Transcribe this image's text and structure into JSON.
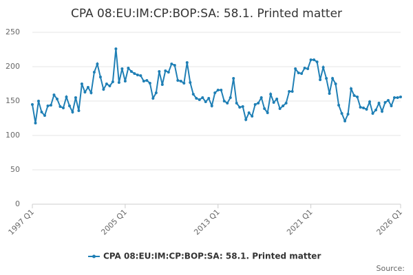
{
  "chart_data": {
    "type": "line",
    "title": "CPA 08:EU:IM:CP:BOP:SA: 58.1. Printed matter",
    "categories": [
      "1997 Q1",
      null,
      null,
      null,
      null,
      null,
      null,
      null,
      null,
      null,
      null,
      null,
      null,
      null,
      null,
      null,
      null,
      null,
      null,
      null,
      null,
      null,
      null,
      null,
      null,
      null,
      null,
      null,
      null,
      null,
      "2005 Q1",
      null,
      null,
      null,
      null,
      null,
      null,
      null,
      null,
      null,
      null,
      null,
      null,
      null,
      null,
      null,
      null,
      null,
      null,
      null,
      null,
      null,
      null,
      null,
      null,
      null,
      null,
      null,
      null,
      null,
      "2013 Q1",
      null,
      null,
      null,
      null,
      null,
      null,
      null,
      null,
      null,
      null,
      null,
      null,
      null,
      null,
      null,
      null,
      null,
      null,
      null,
      null,
      null,
      null,
      null,
      null,
      null,
      null,
      null,
      null,
      null,
      "2021 Q1",
      null,
      null,
      null,
      null,
      null,
      null,
      null,
      null,
      null,
      null,
      null,
      null,
      null,
      null,
      null,
      null,
      null,
      null,
      null,
      null,
      null,
      null,
      null,
      null,
      null,
      null,
      null,
      null,
      "2026 Q1"
    ],
    "series": [
      {
        "name": "CPA 08:EU:IM:CP:BOP:SA: 58.1. Printed matter",
        "color": "#1f7fb5",
        "values": [
          145,
          118,
          150,
          134,
          129,
          143,
          144,
          159,
          153,
          142,
          140,
          156,
          143,
          134,
          155,
          136,
          175,
          163,
          170,
          162,
          192,
          204,
          185,
          167,
          175,
          172,
          178,
          226,
          177,
          197,
          179,
          198,
          193,
          190,
          188,
          187,
          179,
          180,
          176,
          154,
          162,
          193,
          174,
          194,
          192,
          204,
          202,
          180,
          179,
          176,
          206,
          177,
          160,
          154,
          152,
          155,
          149,
          154,
          143,
          162,
          166,
          166,
          150,
          147,
          155,
          183,
          147,
          141,
          142,
          123,
          133,
          128,
          145,
          147,
          155,
          139,
          133,
          160,
          148,
          153,
          139,
          143,
          147,
          164,
          164,
          197,
          191,
          190,
          198,
          197,
          210,
          210,
          207,
          181,
          199,
          183,
          161,
          183,
          175,
          144,
          132,
          121,
          131,
          168,
          158,
          156,
          141,
          140,
          138,
          149,
          132,
          137,
          147,
          135,
          148,
          151,
          143,
          155,
          155,
          156
        ]
      }
    ],
    "ylim": [
      0,
      250
    ],
    "yticks": [
      0,
      50,
      100,
      150,
      200,
      250
    ],
    "grid": true,
    "legend": "bottom",
    "source": "Source:"
  }
}
